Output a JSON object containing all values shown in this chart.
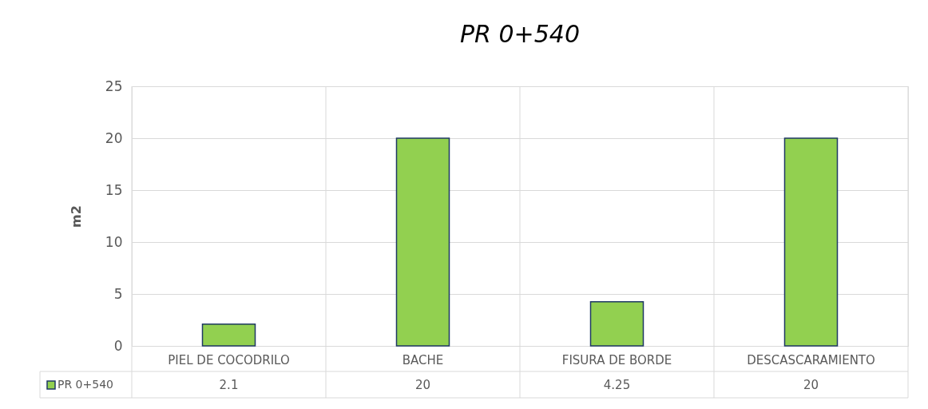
{
  "chart_data": {
    "type": "bar",
    "title": "PR 0+540",
    "ylabel": "m2",
    "categories": [
      "PIEL DE COCODRILO",
      "BACHE",
      "FISURA DE BORDE",
      "DESCASCARAMIENTO"
    ],
    "series": [
      {
        "name": "PR 0+540",
        "color": "#92d050",
        "values": [
          2.1,
          20,
          4.25,
          20
        ]
      }
    ],
    "ylim": [
      0,
      25
    ],
    "yticks": [
      0,
      5,
      10,
      15,
      20,
      25
    ],
    "grid": "y",
    "legend": "bottom left",
    "data_labels": true
  }
}
